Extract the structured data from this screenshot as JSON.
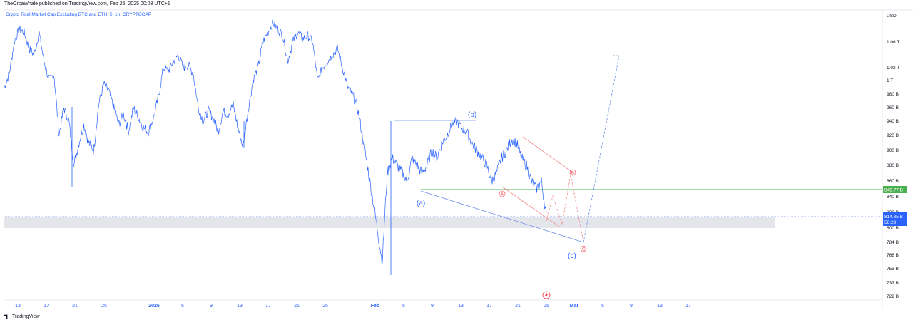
{
  "header": {
    "published": "TheOrcaWhale published on TradingView.com, Feb 25, 2025 00:03 UTC+1",
    "symbol": "Crypto Total Market Cap Excluding BTC and ETH, 5, 1h, CRYPTOCAP"
  },
  "footer": {
    "logo_text": "TradingView"
  },
  "colors": {
    "price": "#2962ff",
    "channel_blue": "#6a8fe8",
    "channel_red": "#f28b8b",
    "support": "#4caf50",
    "current": "#2962ff",
    "zone": "#e4e6eb"
  },
  "chart_data": {
    "type": "line",
    "ylabel_unit": "USD",
    "y_ticks": [
      "1.06 T",
      "1.02 T",
      "1 T",
      "980 B",
      "960 B",
      "940 B",
      "920 B",
      "900 B",
      "880 B",
      "860 B",
      "840 B",
      "820 B",
      "800 B",
      "784 B",
      "768 B",
      "753 B",
      "737 B",
      "722 B"
    ],
    "x_ticks": [
      "13",
      "17",
      "21",
      "25",
      "2025",
      "5",
      "9",
      "13",
      "17",
      "21",
      "25",
      "Feb",
      "5",
      "9",
      "13",
      "17",
      "21",
      "25",
      "Mar",
      "5",
      "9",
      "13",
      "17"
    ],
    "price_badge": {
      "support": "848.77 B",
      "current": "814.85 B",
      "countdown": "56:29"
    },
    "support_level": 848.77,
    "current_price": 814.85,
    "series": [
      {
        "values": [
          990,
          1010,
          1060,
          1080,
          1075,
          1050,
          1040,
          1075,
          1030,
          1000,
          1010,
          920,
          960,
          940,
          880,
          910,
          935,
          910,
          900,
          965,
          995,
          985,
          960,
          935,
          950,
          925,
          960,
          945,
          930,
          925,
          945,
          975,
          1020,
          1015,
          1030,
          1040,
          1020,
          1025,
          1010,
          960,
          940,
          955,
          945,
          925,
          955,
          950,
          965,
          930,
          905,
          955,
          1000,
          1020,
          1060,
          1075,
          1090,
          1080,
          1070,
          1030,
          1060,
          1075,
          1065,
          1070,
          1060,
          1000,
          1020,
          1030,
          1040,
          1050,
          1020,
          990,
          980,
          960,
          920,
          880,
          840,
          800,
          760,
          870,
          890,
          880,
          870,
          860,
          890,
          880,
          870,
          880,
          900,
          890,
          910,
          920,
          935,
          940,
          930,
          925,
          910,
          900,
          890,
          880,
          860,
          870,
          890,
          900,
          915,
          910,
          890,
          880,
          860,
          850,
          860,
          815
        ]
      }
    ],
    "annotations": {
      "main_waves": [
        "(a)",
        "(b)",
        "(c)"
      ],
      "sub_waves": [
        "A",
        "B",
        "C"
      ]
    }
  }
}
